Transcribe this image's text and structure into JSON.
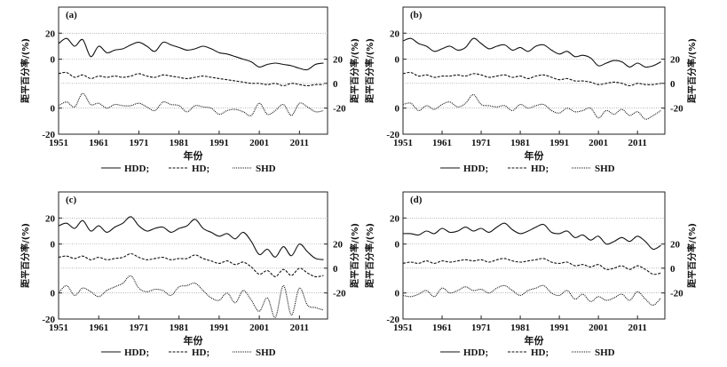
{
  "chart_data": [
    {
      "type": "line",
      "panel_label": "(a)",
      "x_ticks": [
        "1951",
        "1961",
        "1971",
        "1981",
        "1991",
        "2001",
        "2011"
      ],
      "left_y_ticks": [
        "20",
        "0",
        "0",
        "-20"
      ],
      "right_y_ticks": [
        "20",
        "0",
        "-20"
      ],
      "y_axis_label": "距平百分率/(%)",
      "x_axis_label": "年份",
      "legend": [
        "HDD;",
        "HD;",
        "SHD"
      ],
      "x": [
        1951,
        1953,
        1955,
        1957,
        1959,
        1961,
        1963,
        1965,
        1967,
        1969,
        1971,
        1973,
        1975,
        1977,
        1979,
        1981,
        1983,
        1985,
        1987,
        1989,
        1991,
        1993,
        1995,
        1997,
        1999,
        2001,
        2003,
        2005,
        2007,
        2009,
        2011,
        2013,
        2015,
        2017
      ],
      "series": [
        {
          "name": "HDD",
          "style": "solid",
          "values": [
            12,
            16,
            10,
            15,
            2,
            10,
            5,
            7,
            8,
            11,
            13,
            10,
            6,
            13,
            11,
            9,
            7,
            8,
            10,
            8,
            5,
            4,
            2,
            0,
            -2,
            -6,
            -4,
            -3,
            -4,
            -5,
            -7,
            -8,
            -4,
            -3
          ]
        },
        {
          "name": "HD",
          "style": "dashed",
          "values": [
            8,
            9,
            5,
            7,
            4,
            6,
            5,
            6,
            5,
            6,
            8,
            6,
            5,
            7,
            6,
            5,
            4,
            5,
            6,
            5,
            4,
            3,
            2,
            1,
            0,
            0,
            -1,
            0,
            -2,
            0,
            -1,
            -2,
            -1,
            -1
          ]
        },
        {
          "name": "SHD",
          "style": "dotted",
          "values": [
            2,
            5,
            1,
            12,
            3,
            4,
            0,
            3,
            2,
            2,
            4,
            1,
            -2,
            5,
            3,
            2,
            -3,
            2,
            1,
            0,
            -5,
            -2,
            -1,
            -3,
            -6,
            4,
            -5,
            -2,
            3,
            -6,
            4,
            1,
            -3,
            -2
          ]
        }
      ]
    },
    {
      "type": "line",
      "panel_label": "(b)",
      "x_ticks": [
        "1951",
        "1961",
        "1971",
        "1981",
        "1991",
        "2001",
        "2011"
      ],
      "left_y_ticks": [
        "20",
        "0",
        "0",
        "-20"
      ],
      "right_y_ticks": [
        "20",
        "0",
        "-20"
      ],
      "y_axis_label": "距平百分率/(%)",
      "x_axis_label": "年份",
      "legend": [
        "HDD;",
        "HD;",
        "SHD"
      ],
      "x": [
        1951,
        1953,
        1955,
        1957,
        1959,
        1961,
        1963,
        1965,
        1967,
        1969,
        1971,
        1973,
        1975,
        1977,
        1979,
        1981,
        1983,
        1985,
        1987,
        1989,
        1991,
        1993,
        1995,
        1997,
        1999,
        2001,
        2003,
        2005,
        2007,
        2009,
        2011,
        2013,
        2015,
        2017
      ],
      "series": [
        {
          "name": "HDD",
          "style": "solid",
          "values": [
            14,
            16,
            12,
            10,
            6,
            8,
            10,
            7,
            9,
            16,
            12,
            8,
            10,
            11,
            7,
            9,
            6,
            10,
            11,
            7,
            4,
            6,
            2,
            3,
            1,
            -5,
            -3,
            -1,
            -2,
            -6,
            -3,
            -6,
            -5,
            -2
          ]
        },
        {
          "name": "HD",
          "style": "dashed",
          "values": [
            8,
            9,
            6,
            7,
            5,
            6,
            6,
            7,
            6,
            8,
            7,
            5,
            6,
            7,
            5,
            6,
            4,
            6,
            7,
            5,
            3,
            4,
            2,
            2,
            1,
            -1,
            0,
            1,
            0,
            -2,
            0,
            -1,
            -1,
            0
          ]
        },
        {
          "name": "SHD",
          "style": "dotted",
          "values": [
            3,
            4,
            -2,
            2,
            -1,
            3,
            5,
            1,
            4,
            11,
            3,
            2,
            1,
            2,
            -2,
            3,
            0,
            2,
            3,
            -2,
            -4,
            0,
            -3,
            -2,
            0,
            -8,
            -2,
            -5,
            -1,
            -6,
            -3,
            -9,
            -6,
            -2
          ]
        }
      ]
    },
    {
      "type": "line",
      "panel_label": "(c)",
      "x_ticks": [
        "1951",
        "1961",
        "1971",
        "1981",
        "1991",
        "2001",
        "2011"
      ],
      "left_y_ticks": [
        "20",
        "0",
        "0",
        "-20"
      ],
      "right_y_ticks": [
        "20",
        "0",
        "-20"
      ],
      "y_axis_label": "距平百分率/(%)",
      "x_axis_label": "年份",
      "legend": [
        "HDD;",
        "HD;",
        "SHD"
      ],
      "x": [
        1951,
        1953,
        1955,
        1957,
        1959,
        1961,
        1963,
        1965,
        1967,
        1969,
        1971,
        1973,
        1975,
        1977,
        1979,
        1981,
        1983,
        1985,
        1987,
        1989,
        1991,
        1993,
        1995,
        1997,
        1999,
        2001,
        2003,
        2005,
        2007,
        2009,
        2011,
        2013,
        2015,
        2017
      ],
      "series": [
        {
          "name": "HDD",
          "style": "solid",
          "values": [
            14,
            16,
            12,
            18,
            10,
            14,
            9,
            13,
            16,
            21,
            14,
            10,
            12,
            13,
            9,
            12,
            14,
            19,
            12,
            9,
            6,
            8,
            4,
            9,
            2,
            -8,
            -4,
            -10,
            -2,
            -9,
            0,
            -6,
            -11,
            -12
          ]
        },
        {
          "name": "HD",
          "style": "dashed",
          "values": [
            9,
            10,
            8,
            10,
            7,
            9,
            7,
            8,
            9,
            12,
            9,
            7,
            8,
            9,
            7,
            8,
            8,
            11,
            8,
            6,
            4,
            6,
            3,
            5,
            1,
            -5,
            -2,
            -7,
            -1,
            -6,
            0,
            -4,
            -7,
            -6
          ]
        },
        {
          "name": "SHD",
          "style": "dotted",
          "values": [
            0,
            6,
            -2,
            4,
            1,
            -3,
            2,
            5,
            8,
            14,
            4,
            1,
            3,
            2,
            -2,
            5,
            6,
            8,
            2,
            -4,
            -6,
            0,
            -8,
            2,
            -6,
            -15,
            -4,
            -20,
            6,
            -18,
            4,
            -10,
            -12,
            -14
          ]
        }
      ]
    },
    {
      "type": "line",
      "panel_label": "(d)",
      "x_ticks": [
        "1951",
        "1961",
        "1971",
        "1981",
        "1991",
        "2001",
        "2011"
      ],
      "left_y_ticks": [
        "20",
        "0",
        "0",
        "-20"
      ],
      "right_y_ticks": [
        "20",
        "0",
        "-20"
      ],
      "y_axis_label": "距平百分率/(%)",
      "x_axis_label": "年份",
      "legend": [
        "HDD;",
        "HD;",
        "SHD"
      ],
      "x": [
        1951,
        1953,
        1955,
        1957,
        1959,
        1961,
        1963,
        1965,
        1967,
        1969,
        1971,
        1973,
        1975,
        1977,
        1979,
        1981,
        1983,
        1985,
        1987,
        1989,
        1991,
        1993,
        1995,
        1997,
        1999,
        2001,
        2003,
        2005,
        2007,
        2009,
        2011,
        2013,
        2015,
        2017
      ],
      "series": [
        {
          "name": "HDD",
          "style": "solid",
          "values": [
            8,
            8,
            7,
            10,
            8,
            12,
            9,
            10,
            13,
            10,
            12,
            9,
            13,
            16,
            11,
            8,
            10,
            13,
            15,
            9,
            8,
            10,
            5,
            7,
            3,
            6,
            0,
            2,
            5,
            2,
            6,
            2,
            -4,
            -1
          ]
        },
        {
          "name": "HD",
          "style": "dashed",
          "values": [
            4,
            5,
            4,
            6,
            4,
            6,
            5,
            6,
            7,
            6,
            7,
            5,
            7,
            8,
            6,
            5,
            6,
            7,
            8,
            5,
            4,
            5,
            2,
            3,
            1,
            3,
            -1,
            0,
            2,
            -1,
            2,
            -1,
            -5,
            -4
          ]
        },
        {
          "name": "SHD",
          "style": "dotted",
          "values": [
            -2,
            -3,
            -1,
            2,
            -3,
            4,
            0,
            2,
            5,
            2,
            3,
            0,
            4,
            6,
            2,
            -2,
            2,
            4,
            6,
            0,
            -2,
            2,
            -5,
            -1,
            -7,
            -3,
            -6,
            -4,
            -1,
            -6,
            1,
            -5,
            -10,
            -4
          ]
        }
      ]
    }
  ]
}
